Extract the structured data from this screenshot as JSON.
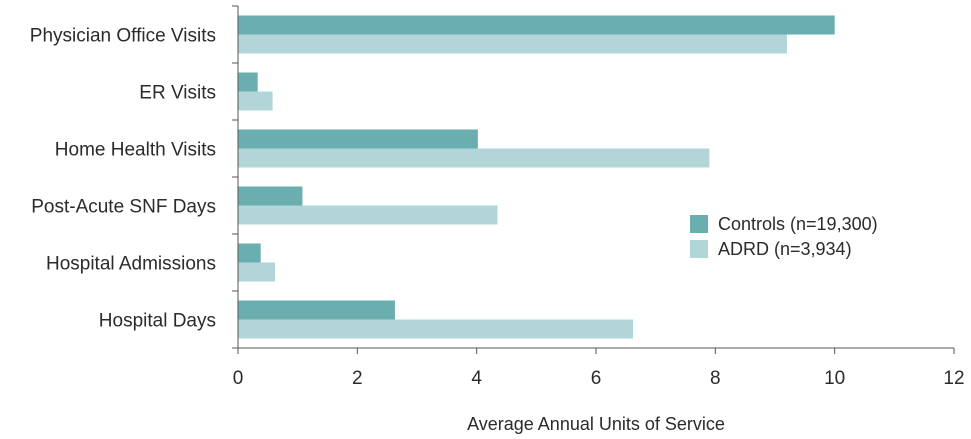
{
  "chart_data": {
    "type": "bar",
    "orientation": "horizontal",
    "categories": [
      "Physician Office Visits",
      "ER Visits",
      "Home Health Visits",
      "Post-Acute SNF Days",
      "Hospital Admissions",
      "Hospital Days"
    ],
    "series": [
      {
        "name": "Controls (n=19,300)",
        "color": "#6aaeb0",
        "values": [
          10.0,
          0.33,
          4.02,
          1.08,
          0.38,
          2.63
        ]
      },
      {
        "name": "ADRD (n=3,934)",
        "color": "#b2d5d8",
        "values": [
          9.2,
          0.58,
          7.9,
          4.35,
          0.62,
          6.62
        ]
      }
    ],
    "xlabel": "Average Annual Units of Service",
    "ylabel": "",
    "title": "",
    "xlim": [
      0,
      12
    ],
    "xticks": [
      "0",
      "2",
      "4",
      "6",
      "8",
      "10",
      "12"
    ],
    "grid": false,
    "legend_position": "right"
  }
}
